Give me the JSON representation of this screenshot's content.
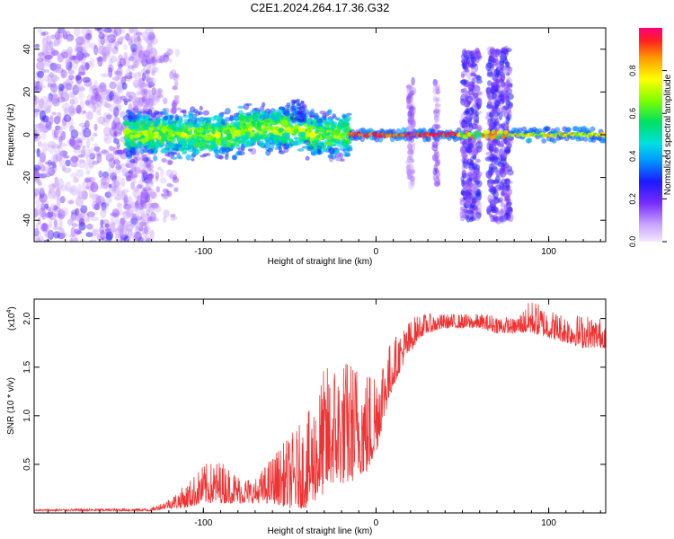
{
  "chart_data": [
    {
      "type": "heatmap",
      "title": "C2E1.2024.264.17.36.G32",
      "xlabel": "Height of straight line (km)",
      "ylabel": "Frequency (Hz)",
      "xlim": [
        -198,
        133
      ],
      "ylim": [
        -50,
        50
      ],
      "xticks": [
        -100,
        0,
        100
      ],
      "yticks": [
        -40,
        -20,
        0,
        20,
        40
      ],
      "colorbar": {
        "label": "Normalized spectral amplitude",
        "range": [
          0,
          1
        ],
        "ticks": [
          "0.0",
          "0.2",
          "0.4",
          "0.6",
          "0.8"
        ]
      }
    },
    {
      "type": "line",
      "xlabel": "Height of straight line (km)",
      "ylabel": "SNR (10 * v/v)",
      "scale_label": "(x10",
      "scale_exp": "4",
      "scale_close": ")",
      "xlim": [
        -198,
        133
      ],
      "ylim": [
        0,
        2.2
      ],
      "xticks": [
        -100,
        0,
        100
      ],
      "yticks": [
        "0.5",
        "1.0",
        "1.5",
        "2.0"
      ],
      "line_color": "#ee3333",
      "envelope": {
        "x": [
          -198,
          -130,
          -120,
          -110,
          -100,
          -90,
          -80,
          -70,
          -60,
          -50,
          -40,
          -30,
          -25,
          -20,
          -15,
          -10,
          -5,
          0,
          5,
          10,
          15,
          20,
          25,
          30,
          40,
          50,
          60,
          70,
          80,
          90,
          100,
          110,
          120,
          133
        ],
        "low": [
          0.02,
          0.02,
          0.05,
          0.05,
          0.1,
          0.1,
          0.1,
          0.1,
          0.1,
          0.05,
          0.05,
          0.2,
          0.3,
          0.3,
          0.3,
          0.4,
          0.4,
          0.6,
          1.0,
          1.3,
          1.5,
          1.65,
          1.8,
          1.85,
          1.9,
          1.9,
          1.9,
          1.85,
          1.85,
          1.85,
          1.8,
          1.75,
          1.7,
          1.7
        ],
        "high": [
          0.04,
          0.05,
          0.15,
          0.3,
          0.5,
          0.55,
          0.4,
          0.35,
          0.6,
          0.8,
          1.0,
          1.5,
          1.6,
          1.6,
          1.6,
          1.6,
          1.5,
          1.6,
          1.7,
          1.8,
          1.9,
          2.0,
          2.05,
          2.05,
          2.05,
          2.05,
          2.05,
          2.05,
          2.0,
          2.2,
          2.1,
          2.05,
          2.05,
          2.0
        ]
      }
    }
  ]
}
